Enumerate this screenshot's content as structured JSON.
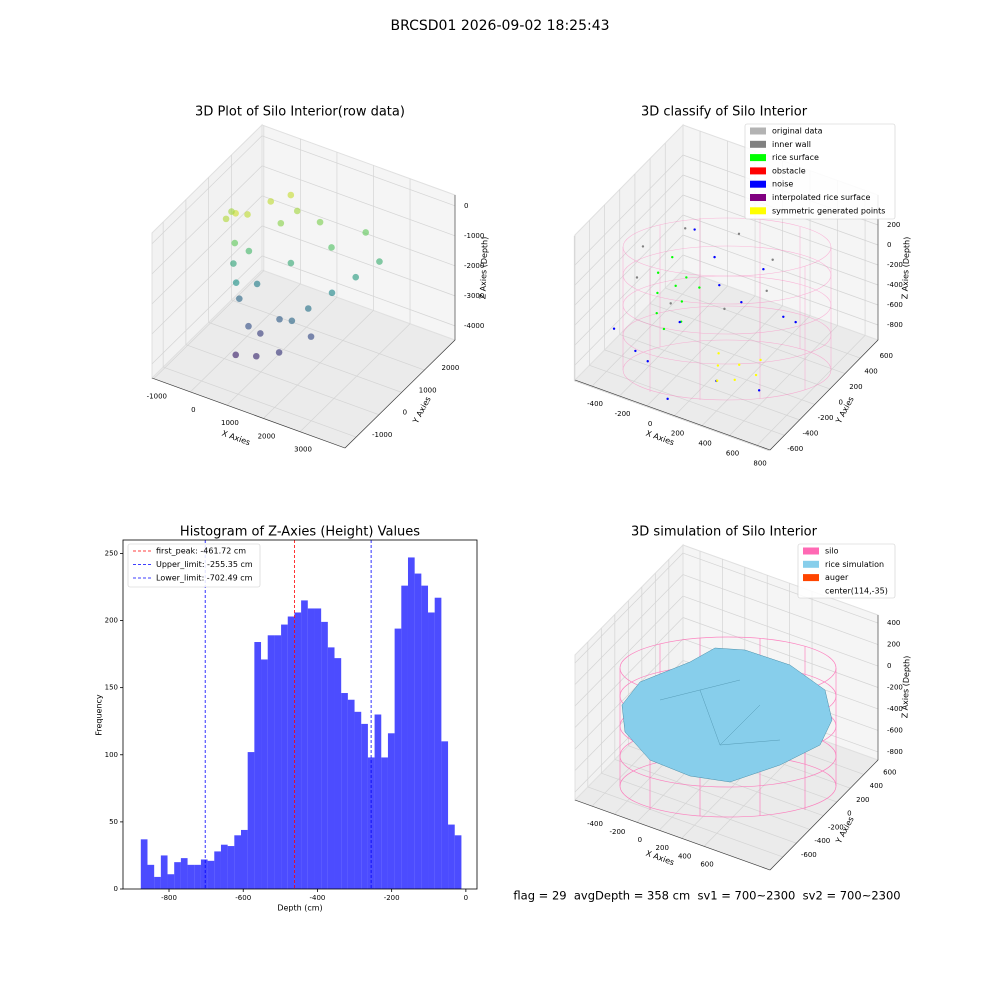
{
  "suptitle": "BRCSD01 2026-09-02 18:25:43",
  "footer_text": "flag = 29  avgDepth = 358 cm  sv1 = 700~2300  sv2 = 700~2300",
  "chart_data": [
    {
      "type": "scatter3d",
      "title": "3D Plot of Silo Interior(row data)",
      "xlabel": "X Axies",
      "ylabel": "Y Axies",
      "zlabel": "Z Axies (Depth)",
      "xlim": [
        -1050,
        4230
      ],
      "ylim": [
        -1490,
        3345
      ],
      "zlim": [
        -4470,
        360
      ],
      "xticks": [
        -1000,
        0,
        1000,
        2000,
        3000
      ],
      "yticks": [
        -1000,
        0,
        1000,
        2000
      ],
      "zticks": [
        -4000,
        -3000,
        -2000,
        -1000,
        0
      ],
      "colormap": "viridis",
      "x": [
        0,
        200,
        -200,
        100,
        300,
        0,
        200,
        400,
        100,
        600,
        800,
        1000,
        1500,
        1200,
        1800,
        2200,
        2600,
        3000,
        2000,
        1500,
        1000,
        2500,
        1200,
        800,
        400,
        1600,
        2000,
        500,
        -300,
        700
      ],
      "y": [
        500,
        700,
        400,
        300,
        600,
        400,
        200,
        800,
        500,
        100,
        300,
        -200,
        0,
        500,
        800,
        1200,
        1600,
        2000,
        1500,
        1800,
        1600,
        2200,
        1000,
        1200,
        1400,
        400,
        600,
        -300,
        800,
        1800
      ],
      "z": [
        0,
        -100,
        -200,
        -800,
        -1200,
        -1600,
        -2000,
        -2400,
        -2800,
        -3200,
        -3500,
        -3800,
        -3600,
        -3000,
        -2600,
        -2200,
        -1800,
        -1400,
        -1000,
        -600,
        -300,
        -800,
        -1500,
        -500,
        -100,
        -2800,
        -3300,
        -3900,
        -300,
        -50
      ]
    },
    {
      "type": "scatter3d_classes",
      "title": "3D classify of Silo Interior",
      "xlabel": "X Axies",
      "ylabel": "Y Axies",
      "zlabel": "Z Axies (Depth)",
      "xlim": [
        -524,
        894
      ],
      "ylim": [
        -590,
        834
      ],
      "zlim": [
        -950,
        500
      ],
      "xticks": [
        -400,
        -200,
        0,
        200,
        400,
        600,
        800
      ],
      "yticks": [
        -600,
        -400,
        -200,
        0,
        200,
        400,
        600
      ],
      "zticks": [
        -800,
        -600,
        -400,
        -200,
        0,
        200
      ],
      "legend": "upper right",
      "series": [
        {
          "name": "original data",
          "color": "#b3b3b3",
          "x": [],
          "y": [],
          "z": []
        },
        {
          "name": "inner wall",
          "color": "#808080",
          "x": [
            564,
            432,
            114,
            -204,
            -336,
            -204,
            114,
            432
          ],
          "y": [
            -35,
            283,
            415,
            283,
            -35,
            -353,
            -485,
            -353
          ],
          "z": [
            50,
            50,
            50,
            50,
            50,
            50,
            50,
            50
          ]
        },
        {
          "name": "rice surface",
          "color": "#00ff00",
          "x": [
            -300,
            -250,
            -200,
            -150,
            -100,
            -50,
            -280,
            -200,
            -120,
            0
          ],
          "y": [
            100,
            0,
            -100,
            200,
            50,
            -50,
            250,
            150,
            -150,
            100
          ],
          "z": [
            -300,
            -400,
            -500,
            -350,
            -450,
            -550,
            -250,
            -420,
            -580,
            -300
          ]
        },
        {
          "name": "obstacle",
          "color": "#ff0000",
          "x": [],
          "y": [],
          "z": []
        },
        {
          "name": "noise",
          "color": "#0000ff",
          "x": [
            -400,
            300,
            600,
            -100,
            200,
            500,
            -300,
            700,
            100,
            400,
            0,
            -200,
            250,
            50
          ],
          "y": [
            -300,
            400,
            -200,
            -400,
            0,
            300,
            -200,
            100,
            -500,
            -400,
            300,
            400,
            200,
            -250
          ],
          "z": [
            -600,
            -200,
            -800,
            -700,
            -100,
            -500,
            -850,
            -300,
            -900,
            -650,
            -150,
            -50,
            -400,
            -350
          ]
        },
        {
          "name": "interpolated rice surface",
          "color": "#800080",
          "x": [],
          "y": [],
          "z": []
        },
        {
          "name": "symmetric generated points",
          "color": "#ffff00",
          "x": [
            300,
            400,
            500,
            350,
            450,
            250,
            550
          ],
          "y": [
            -200,
            -100,
            0,
            -300,
            -250,
            -100,
            -150
          ],
          "z": [
            -700,
            -720,
            -700,
            -750,
            -730,
            -680,
            -710
          ]
        }
      ]
    },
    {
      "type": "histogram",
      "title": "Histogram of Z-Axies (Height) Values",
      "xlabel": "Depth (cm)",
      "ylabel": "Frequency",
      "color": "#0000ff",
      "alpha": 0.7,
      "bins": [
        -876,
        -858,
        -840,
        -822,
        -804,
        -786,
        -768,
        -750,
        -732,
        -714,
        -696,
        -678,
        -660,
        -642,
        -624,
        -606,
        -588,
        -570,
        -552,
        -534,
        -516,
        -498,
        -480,
        -462,
        -444,
        -426,
        -408,
        -390,
        -372,
        -354,
        -336,
        -318,
        -300,
        -282,
        -264,
        -246,
        -228,
        -210,
        -192,
        -174,
        -156,
        -138,
        -120,
        -102,
        -84,
        -66,
        -48,
        -30,
        -12
      ],
      "counts": [
        37,
        18,
        9,
        25,
        11,
        20,
        23,
        18,
        18,
        22,
        21,
        28,
        33,
        32,
        40,
        44,
        102,
        184,
        171,
        189,
        189,
        197,
        203,
        206,
        215,
        209,
        209,
        199,
        180,
        172,
        146,
        141,
        132,
        123,
        98,
        130,
        98,
        116,
        194,
        226,
        247,
        235,
        226,
        206,
        217,
        110,
        48,
        40
      ],
      "xlim": [
        -924,
        30
      ],
      "ylim": [
        0,
        260
      ],
      "xticks": [
        -800,
        -600,
        -400,
        -200,
        0
      ],
      "yticks": [
        0,
        50,
        100,
        150,
        200,
        250
      ],
      "legend": "upper left",
      "lines": [
        {
          "label": "first_peak: -461.72 cm",
          "value": -461.72,
          "color": "#ff0000"
        },
        {
          "label": "Upper_limit: -255.35 cm",
          "value": -255.35,
          "color": "#0000ff"
        },
        {
          "label": "Lower_limit: -702.49 cm",
          "value": -702.49,
          "color": "#0000ff"
        }
      ]
    },
    {
      "type": "surface3d",
      "title": "3D simulation of Silo Interior",
      "xlabel": "X Axies",
      "ylabel": "Y Axies",
      "zlabel": "Z Axies (Depth)",
      "xlim": [
        -552,
        1189
      ],
      "ylim": [
        -790,
        810
      ],
      "zlim": [
        -875,
        475
      ],
      "xticks": [
        -400,
        -200,
        0,
        200,
        400,
        600
      ],
      "yticks": [
        -600,
        -400,
        -200,
        0,
        200,
        400,
        600
      ],
      "zticks": [
        -800,
        -600,
        -400,
        -200,
        0,
        200,
        400
      ],
      "legend": "upper right",
      "series": [
        {
          "name": "silo",
          "color": "#ff69b4"
        },
        {
          "name": "rice simulation",
          "color": "#87ceeb"
        },
        {
          "name": "auger",
          "color": "#ff4500"
        },
        {
          "name": "center(114,-35)"
        }
      ]
    }
  ]
}
